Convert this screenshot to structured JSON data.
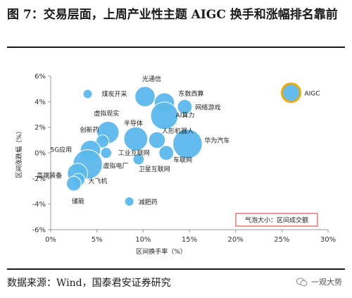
{
  "header": {
    "title": "图 7：交易层面，上周产业性主题 AIGC 换手和涨幅排名靠前"
  },
  "footer": {
    "source": "数据来源：Wind，国泰君安证券研究",
    "watermark": "一观大势"
  },
  "colors": {
    "bubble": "#5bb8ec",
    "bubble_stroke": "#ffffff",
    "highlight": "#5bb8ec",
    "highlight_stroke": "#f2a900",
    "note_text": "#e03030",
    "note_border": "#e03030"
  },
  "chart_data": {
    "type": "scatter",
    "title": "",
    "xlabel": "区间换手率（%）",
    "ylabel": "区间涨跌幅（%）",
    "xlim": [
      0,
      30
    ],
    "ylim": [
      -6,
      6
    ],
    "x_ticks": [
      "0%",
      "5%",
      "10%",
      "15%",
      "20%",
      "25%",
      "30%"
    ],
    "y_ticks": [
      "6%",
      "4%",
      "2%",
      "0%",
      "-2%",
      "-4%",
      "-6%"
    ],
    "note": "气泡大小：区间成交额",
    "points": [
      {
        "name": "AIGC",
        "x": 26.0,
        "y": 4.7,
        "size": 1.0,
        "highlight": true
      },
      {
        "name": "煤炭开采",
        "x": 4.0,
        "y": 4.6,
        "size": 0.5
      },
      {
        "name": "光通信",
        "x": 10.2,
        "y": 4.4,
        "size": 1.1
      },
      {
        "name": "东数西算",
        "x": 12.3,
        "y": 3.9,
        "size": 1.1
      },
      {
        "name": "网络游戏",
        "x": 14.5,
        "y": 3.6,
        "size": 0.8
      },
      {
        "name": "AI算力",
        "x": 12.3,
        "y": 2.9,
        "size": 1.5
      },
      {
        "name": "虚拟现实",
        "x": 6.2,
        "y": 1.6,
        "size": 1.2
      },
      {
        "name": "创新药",
        "x": 5.6,
        "y": 0.9,
        "size": 0.7
      },
      {
        "name": "半导体",
        "x": 9.2,
        "y": 1.1,
        "size": 1.3
      },
      {
        "name": "人形机器人",
        "x": 11.5,
        "y": 1.0,
        "size": 0.9
      },
      {
        "name": "华为汽车",
        "x": 14.8,
        "y": 0.7,
        "size": 1.6
      },
      {
        "name": "5G应用",
        "x": 4.3,
        "y": 0.2,
        "size": 1.1
      },
      {
        "name": "工业互联网",
        "x": 6.0,
        "y": 0.0,
        "size": 0.6
      },
      {
        "name": "车联网",
        "x": 12.5,
        "y": 0.0,
        "size": 0.8
      },
      {
        "name": "虚拟电厂",
        "x": 4.0,
        "y": -0.9,
        "size": 1.6
      },
      {
        "name": "卫星互联网",
        "x": 9.5,
        "y": -0.5,
        "size": 0.6
      },
      {
        "name": "高端装备",
        "x": 2.9,
        "y": -1.6,
        "size": 1.1
      },
      {
        "name": "大飞机",
        "x": 3.0,
        "y": -2.1,
        "size": 0.7
      },
      {
        "name": "储能",
        "x": 2.5,
        "y": -2.4,
        "size": 0.8
      },
      {
        "name": "减肥药",
        "x": 8.5,
        "y": -3.8,
        "size": 0.5
      }
    ]
  }
}
